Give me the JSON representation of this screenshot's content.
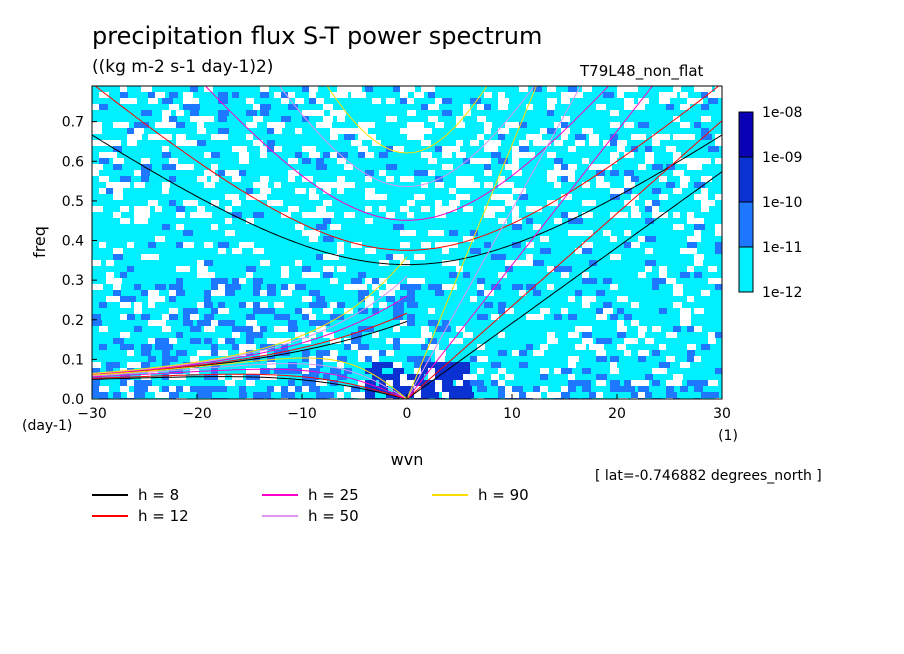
{
  "header": {
    "title": "precipitation flux S-T power spectrum",
    "units": "((kg m-2 s-1 day-1)2)",
    "run": "T79L48_non_flat",
    "lat_note": "[ lat=-0.746882 degrees_north ]"
  },
  "chart_data": {
    "type": "heatmap",
    "title": "precipitation flux S-T power spectrum",
    "xlabel": "wvn",
    "x_unit_label": "(1)",
    "ylabel": "freq",
    "y_unit_label": "(day-1)",
    "xlim": [
      -30,
      30
    ],
    "ylim": [
      0.0,
      0.79
    ],
    "x_ticks": [
      -30,
      -20,
      -10,
      0,
      10,
      20,
      30
    ],
    "y_ticks": [
      0.0,
      0.1,
      0.2,
      0.3,
      0.4,
      0.5,
      0.6,
      0.7
    ],
    "grid": false,
    "colorbar": {
      "levels": [
        "1e-12",
        "1e-11",
        "1e-10",
        "1e-09",
        "1e-08"
      ],
      "colors": [
        "#00f0ff",
        "#1e78ff",
        "#0a32d2",
        "#0a00b4",
        "#5000be"
      ]
    },
    "dispersion_curves": [
      {
        "name": "h = 8",
        "h": 8,
        "color": "#000000"
      },
      {
        "name": "h = 12",
        "h": 12,
        "color": "#ff0000"
      },
      {
        "name": "h = 25",
        "h": 25,
        "color": "#ff00c8"
      },
      {
        "name": "h = 50",
        "h": 50,
        "color": "#dc96f0"
      },
      {
        "name": "h = 90",
        "h": 90,
        "color": "#ffdc00"
      }
    ],
    "legend_placement": "bottom"
  }
}
